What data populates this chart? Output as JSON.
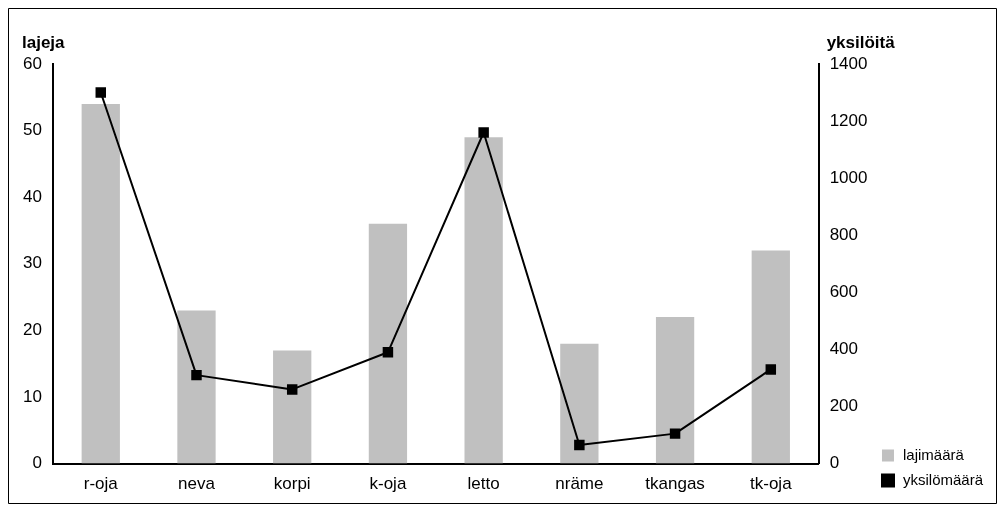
{
  "chart_data": {
    "type": "bar",
    "ylabel": "lajeja",
    "y2label": "yksilöitä",
    "categories": [
      "r-oja",
      "neva",
      "korpi",
      "k-oja",
      "letto",
      "nräme",
      "tkangas",
      "tk-oja"
    ],
    "series": [
      {
        "name": "lajimäärä",
        "color": "#c0c0c0",
        "values": [
          54,
          23,
          17,
          36,
          49,
          18,
          22,
          32
        ]
      },
      {
        "name": "yksilömäärä",
        "type": "line",
        "axis": "y2",
        "color": "#000000",
        "marker": "square",
        "values": [
          1300,
          310,
          260,
          390,
          1160,
          65,
          105,
          330
        ]
      }
    ],
    "ylim": [
      0,
      60
    ],
    "yticks": [
      0,
      10,
      20,
      30,
      40,
      50,
      60
    ],
    "y2lim": [
      0,
      1400
    ],
    "y2ticks": [
      0,
      200,
      400,
      600,
      800,
      1000,
      1200,
      1400
    ],
    "grid": false,
    "legend": "bottom right"
  }
}
